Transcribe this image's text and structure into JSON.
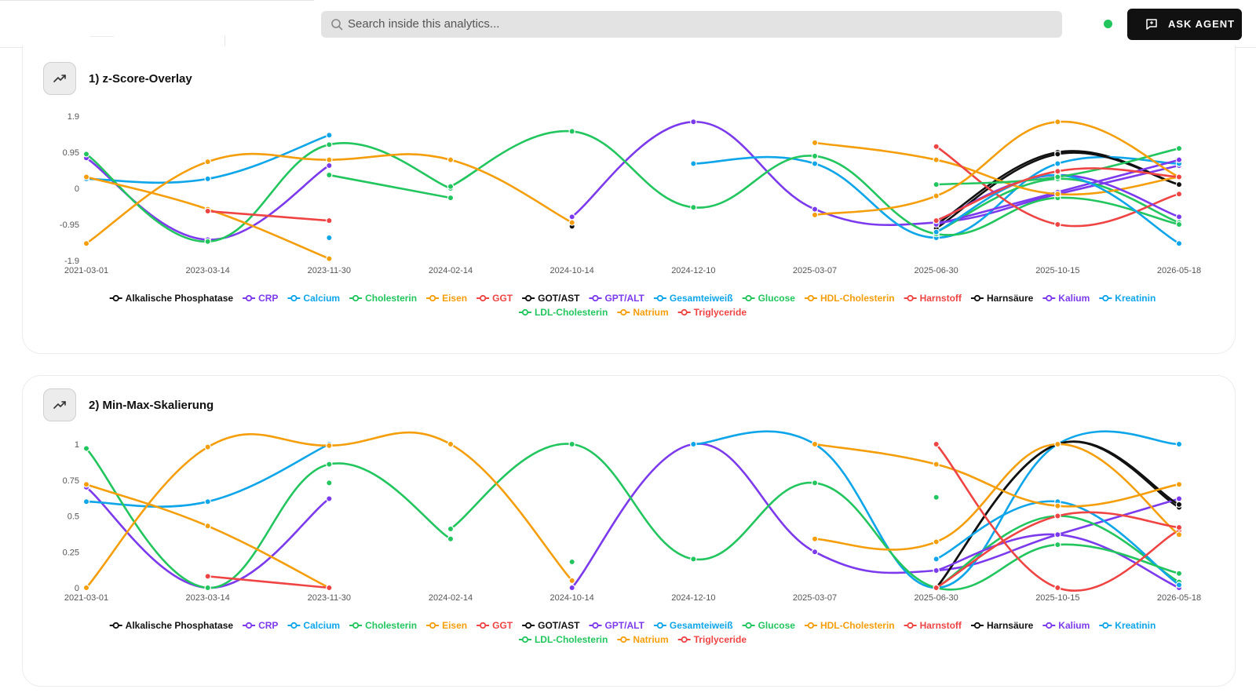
{
  "header": {
    "search_placeholder": "Search inside this analytics...",
    "agent_button_label": "ASK AGENT",
    "status_color": "#22c55e"
  },
  "cards": [
    {
      "title": "1) z-Score-Overlay"
    },
    {
      "title": "2) Min-Max-Skalierung"
    }
  ],
  "chart_data": [
    {
      "type": "line",
      "title": "1) z-Score-Overlay",
      "categories": [
        "2021-03-01",
        "2023-03-14",
        "2023-11-30",
        "2024-02-14",
        "2024-10-14",
        "2024-12-10",
        "2025-03-07",
        "2025-06-30",
        "2025-10-15",
        "2026-05-18"
      ],
      "y_ticks": [
        "1.9",
        "0.95",
        "0",
        "-0.95",
        "-1.9"
      ],
      "ylim": [
        -1.9,
        1.9
      ],
      "grid": false,
      "legend_position": "bottom",
      "series": [
        {
          "name": "Alkalische Phosphatase",
          "color": "#111111",
          "values": [
            null,
            null,
            null,
            null,
            null,
            null,
            null,
            -0.95,
            0.95,
            0.1
          ]
        },
        {
          "name": "CRP",
          "color": "#7c3aed",
          "values": [
            0.8,
            -1.35,
            0.6,
            null,
            -0.75,
            1.75,
            -0.55,
            -0.9,
            -0.15,
            0.6
          ]
        },
        {
          "name": "Calcium",
          "color": "#0ea5e9",
          "values": [
            0.25,
            0.25,
            1.4,
            null,
            null,
            0.65,
            0.65,
            -1.3,
            0.65,
            0.65
          ]
        },
        {
          "name": "Cholesterin",
          "color": "#22c55e",
          "values": [
            0.9,
            -1.4,
            1.15,
            0.0,
            null,
            null,
            null,
            -1.15,
            0.25,
            -0.9
          ]
        },
        {
          "name": "Eisen",
          "color": "#f59e0b",
          "values": [
            0.3,
            -0.55,
            -1.85,
            null,
            null,
            null,
            null,
            null,
            null,
            null
          ]
        },
        {
          "name": "GGT",
          "color": "#ef4444",
          "values": [
            null,
            -0.6,
            -0.85,
            null,
            null,
            null,
            null,
            null,
            null,
            null
          ]
        },
        {
          "name": "GOT/AST",
          "color": "#111111",
          "values": [
            null,
            null,
            null,
            null,
            -1.0,
            null,
            null,
            -1.05,
            0.9,
            0.1
          ]
        },
        {
          "name": "GPT/ALT",
          "color": "#7c3aed",
          "values": [
            null,
            null,
            null,
            null,
            null,
            null,
            null,
            -0.95,
            -0.1,
            0.75
          ]
        },
        {
          "name": "Gesamteiweiß",
          "color": "#0ea5e9",
          "values": [
            null,
            null,
            -1.3,
            null,
            null,
            null,
            null,
            null,
            null,
            null
          ]
        },
        {
          "name": "Glucose",
          "color": "#22c55e",
          "values": [
            null,
            null,
            null,
            0.05,
            1.5,
            -0.5,
            0.85,
            -1.2,
            -0.25,
            -0.95
          ]
        },
        {
          "name": "HDL-Cholesterin",
          "color": "#f59e0b",
          "values": [
            null,
            null,
            null,
            null,
            null,
            null,
            1.2,
            0.75,
            -0.15,
            0.3
          ]
        },
        {
          "name": "Harnstoff",
          "color": "#ef4444",
          "values": [
            null,
            null,
            null,
            null,
            null,
            null,
            null,
            1.1,
            -0.95,
            -0.15
          ]
        },
        {
          "name": "Harnsäure",
          "color": "#111111",
          "values": [
            null,
            null,
            null,
            null,
            null,
            null,
            null,
            null,
            null,
            null
          ]
        },
        {
          "name": "Kalium",
          "color": "#7c3aed",
          "values": [
            null,
            null,
            null,
            null,
            null,
            null,
            null,
            -0.85,
            0.35,
            -0.75
          ]
        },
        {
          "name": "Kreatinin",
          "color": "#0ea5e9",
          "values": [
            null,
            null,
            null,
            null,
            null,
            null,
            null,
            -1.15,
            0.35,
            -1.45
          ]
        },
        {
          "name": "LDL-Cholesterin",
          "color": "#22c55e",
          "values": [
            null,
            null,
            0.35,
            -0.25,
            null,
            null,
            null,
            0.1,
            0.3,
            1.05
          ]
        },
        {
          "name": "Natrium",
          "color": "#f59e0b",
          "values": [
            -1.45,
            0.7,
            0.75,
            0.75,
            -0.9,
            null,
            -0.7,
            -0.2,
            1.75,
            0.3
          ]
        },
        {
          "name": "Triglyceride",
          "color": "#ef4444",
          "values": [
            null,
            null,
            null,
            null,
            null,
            null,
            null,
            -0.85,
            0.45,
            0.3
          ]
        }
      ]
    },
    {
      "type": "line",
      "title": "2) Min-Max-Skalierung",
      "categories": [
        "2021-03-01",
        "2023-03-14",
        "2023-11-30",
        "2024-02-14",
        "2024-10-14",
        "2024-12-10",
        "2025-03-07",
        "2025-06-30",
        "2025-10-15",
        "2026-05-18"
      ],
      "y_ticks": [
        "1",
        "0.75",
        "0.5",
        "0.25",
        "0"
      ],
      "ylim": [
        0,
        1
      ],
      "grid": false,
      "legend_position": "bottom",
      "series": [
        {
          "name": "Alkalische Phosphatase",
          "color": "#111111",
          "values": [
            null,
            null,
            null,
            null,
            null,
            null,
            null,
            0.0,
            1.0,
            0.56
          ]
        },
        {
          "name": "CRP",
          "color": "#7c3aed",
          "values": [
            0.7,
            0.0,
            0.62,
            null,
            0.0,
            1.0,
            0.25,
            0.12,
            0.37,
            0.62
          ]
        },
        {
          "name": "Calcium",
          "color": "#0ea5e9",
          "values": [
            0.6,
            0.6,
            1.0,
            null,
            null,
            1.0,
            1.0,
            0.0,
            1.0,
            1.0
          ]
        },
        {
          "name": "Cholesterin",
          "color": "#22c55e",
          "values": [
            0.97,
            0.0,
            0.86,
            0.34,
            null,
            null,
            null,
            0.0,
            0.5,
            0.04
          ]
        },
        {
          "name": "Eisen",
          "color": "#f59e0b",
          "values": [
            0.72,
            0.43,
            0.0,
            null,
            null,
            null,
            null,
            null,
            null,
            null
          ]
        },
        {
          "name": "GGT",
          "color": "#ef4444",
          "values": [
            null,
            0.08,
            0.0,
            null,
            null,
            null,
            null,
            null,
            null,
            null
          ]
        },
        {
          "name": "GOT/AST",
          "color": "#111111",
          "values": [
            null,
            null,
            null,
            null,
            null,
            null,
            null,
            0.0,
            1.0,
            0.58
          ]
        },
        {
          "name": "GPT/ALT",
          "color": "#7c3aed",
          "values": [
            null,
            null,
            null,
            null,
            null,
            null,
            null,
            0.12,
            0.37,
            0.0
          ]
        },
        {
          "name": "Gesamteiweiß",
          "color": "#0ea5e9",
          "values": [
            null,
            null,
            null,
            null,
            null,
            null,
            null,
            0.2,
            0.6,
            0.02
          ]
        },
        {
          "name": "Glucose",
          "color": "#22c55e",
          "values": [
            null,
            null,
            null,
            0.41,
            1.0,
            0.2,
            0.73,
            0.0,
            0.3,
            0.1
          ]
        },
        {
          "name": "HDL-Cholesterin",
          "color": "#f59e0b",
          "values": [
            null,
            null,
            null,
            null,
            null,
            null,
            1.0,
            0.86,
            0.57,
            0.72
          ]
        },
        {
          "name": "Harnstoff",
          "color": "#ef4444",
          "values": [
            null,
            null,
            null,
            null,
            null,
            null,
            null,
            1.0,
            0.0,
            0.4
          ]
        },
        {
          "name": "Harnsäure",
          "color": "#111111",
          "values": [
            null,
            null,
            null,
            null,
            null,
            null,
            null,
            null,
            null,
            null
          ]
        },
        {
          "name": "Kalium",
          "color": "#7c3aed",
          "values": [
            null,
            null,
            null,
            null,
            null,
            null,
            null,
            null,
            null,
            0.42
          ]
        },
        {
          "name": "Kreatinin",
          "color": "#0ea5e9",
          "values": [
            null,
            null,
            null,
            null,
            null,
            null,
            null,
            null,
            null,
            null
          ]
        },
        {
          "name": "LDL-Cholesterin",
          "color": "#22c55e",
          "values": [
            null,
            null,
            0.73,
            null,
            0.18,
            null,
            null,
            0.63,
            null,
            null
          ]
        },
        {
          "name": "Natrium",
          "color": "#f59e0b",
          "values": [
            0.0,
            0.98,
            0.99,
            1.0,
            0.05,
            null,
            0.34,
            0.32,
            1.0,
            0.37
          ]
        },
        {
          "name": "Triglyceride",
          "color": "#ef4444",
          "values": [
            null,
            null,
            null,
            null,
            null,
            null,
            null,
            0.0,
            0.5,
            0.42
          ]
        }
      ]
    }
  ]
}
